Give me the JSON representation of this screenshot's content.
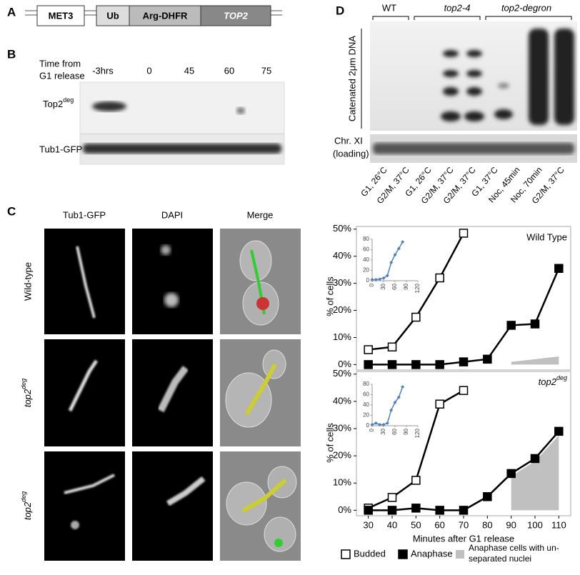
{
  "panel_labels": [
    "A",
    "B",
    "C",
    "D"
  ],
  "construct": {
    "segments": [
      "MET3",
      "Ub",
      "Arg-DHFR",
      "TOP2"
    ]
  },
  "blot": {
    "time_label": [
      "Time from",
      "G1 release"
    ],
    "timepoints": [
      "-3hrs",
      "0",
      "45",
      "60",
      "75"
    ],
    "rows": [
      {
        "name": "Top2",
        "sup": "deg"
      },
      {
        "name": "Tub1-GFP"
      }
    ]
  },
  "microscopy": {
    "columns": [
      "Tub1-GFP",
      "DAPI",
      "Merge"
    ],
    "rows": [
      {
        "name": "Wild-type"
      },
      {
        "name": "top2",
        "sup": "deg"
      },
      {
        "name": "top2",
        "sup": "deg"
      }
    ]
  },
  "gel": {
    "groups": [
      "WT",
      "top2-4",
      "top2-degron"
    ],
    "side_label": "Catenated 2μm DNA",
    "loading_label": [
      "Chr. XI",
      "(loading)"
    ],
    "lanes": [
      "G1, 26°C",
      "G2/M, 37°C",
      "G1, 26°C",
      "G2/M, 37°C",
      "G2/M, 37°C",
      "G1, 37°C",
      "Noc, 45min",
      "Noc, 70min",
      "G2/M, 37°C"
    ]
  },
  "chart_data": [
    {
      "type": "line",
      "annotation": "Wild Type",
      "ylabel": "% of cells",
      "x": [
        30,
        40,
        50,
        60,
        70,
        80,
        90,
        100,
        110
      ],
      "xlim": [
        25,
        115
      ],
      "ylim": [
        -2,
        51
      ],
      "yticks": [
        {
          "value": 0,
          "label": "0%"
        },
        {
          "value": 10,
          "label": "10%"
        },
        {
          "value": 20,
          "label": "20%"
        },
        {
          "value": 30,
          "label": "30%"
        },
        {
          "value": 40,
          "label": "40%"
        },
        {
          "value": 50,
          "label": "50%"
        }
      ],
      "series": [
        {
          "type": "area",
          "color": "#c0c0c0",
          "values": [
            null,
            null,
            null,
            null,
            null,
            null,
            1,
            2,
            3
          ]
        },
        {
          "type": "line",
          "color": "#ffffff",
          "values": [
            5.5,
            6.5,
            17.5,
            32,
            48.5,
            null,
            null,
            null,
            null
          ]
        },
        {
          "type": "line",
          "color": "#000000",
          "values": [
            0,
            0,
            0,
            0,
            1,
            2,
            14.5,
            15,
            35.5
          ]
        }
      ],
      "inset": {
        "type": "line",
        "color": "#4f81bd",
        "x": [
          0,
          10,
          20,
          30,
          40,
          50,
          60,
          70,
          80
        ],
        "values": [
          2,
          2,
          3,
          5,
          10,
          35,
          50,
          62,
          75
        ],
        "xlim": [
          0,
          120
        ],
        "ylim": [
          0,
          80
        ],
        "xticks": [
          0,
          30,
          60,
          90,
          120
        ],
        "yticks": [
          0,
          20,
          40,
          60,
          80
        ]
      }
    },
    {
      "type": "line",
      "annotation": {
        "name": "top2",
        "sup": "deg"
      },
      "ylabel": "% of cells",
      "xlabel": "Minutes after G1 release",
      "x": [
        30,
        40,
        50,
        60,
        70,
        80,
        90,
        100,
        110
      ],
      "xlim": [
        25,
        115
      ],
      "xticks": [
        30,
        40,
        50,
        60,
        70,
        80,
        90,
        100,
        110
      ],
      "ylim": [
        -2,
        51
      ],
      "yticks": [
        {
          "value": 0,
          "label": "0%"
        },
        {
          "value": 10,
          "label": "10%"
        },
        {
          "value": 20,
          "label": "20%"
        },
        {
          "value": 30,
          "label": "30%"
        },
        {
          "value": 40,
          "label": "40%"
        },
        {
          "value": 50,
          "label": "50%"
        }
      ],
      "legend": "bottom",
      "series": [
        {
          "type": "area",
          "name": "Anaphase cells with un-separated nuclei",
          "color": "#c0c0c0",
          "values": [
            null,
            null,
            null,
            null,
            null,
            null,
            12.5,
            18,
            27.5
          ]
        },
        {
          "type": "line",
          "name": "Budded",
          "color": "#ffffff",
          "values": [
            0.8,
            4.7,
            11,
            39,
            44,
            null,
            null,
            null,
            null
          ]
        },
        {
          "type": "line",
          "name": "Anaphase",
          "color": "#000000",
          "values": [
            0,
            0,
            0.8,
            0,
            0,
            5,
            13.5,
            19,
            29
          ]
        }
      ],
      "inset": {
        "type": "line",
        "color": "#4f81bd",
        "x": [
          0,
          10,
          20,
          30,
          40,
          50,
          60,
          70,
          80
        ],
        "values": [
          2,
          5,
          2,
          2,
          5,
          30,
          45,
          55,
          75
        ],
        "xlim": [
          0,
          120
        ],
        "ylim": [
          0,
          80
        ],
        "xticks": [
          0,
          30,
          60,
          90,
          120
        ],
        "yticks": [
          0,
          20,
          40,
          60,
          80
        ]
      }
    }
  ]
}
